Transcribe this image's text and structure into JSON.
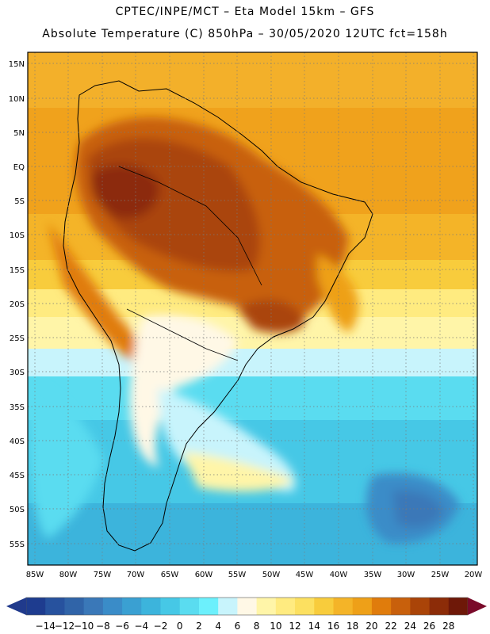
{
  "titles": {
    "line1": "CPTEC/INPE/MCT –  Eta Model 15km – GFS",
    "line2": "Absolute Temperature (C) 850hPa – 30/05/2020 12UTC fct=158h"
  },
  "map": {
    "lat_labels": [
      "15N",
      "10N",
      "5N",
      "EQ",
      "5S",
      "10S",
      "15S",
      "20S",
      "25S",
      "30S",
      "35S",
      "40S",
      "45S",
      "50S",
      "55S"
    ],
    "lon_labels": [
      "85W",
      "80W",
      "75W",
      "70W",
      "65W",
      "60W",
      "55W",
      "50W",
      "45W",
      "40W",
      "35W",
      "30W",
      "25W",
      "20W"
    ],
    "lat_range": [
      17.5,
      -57.5
    ],
    "lon_range": [
      -86.5,
      -20.0
    ]
  },
  "colorbar": {
    "labels": [
      "-14",
      "-12",
      "-10",
      "-8",
      "-6",
      "-4",
      "-2",
      "0",
      "2",
      "4",
      "6",
      "8",
      "10",
      "12",
      "14",
      "16",
      "18",
      "20",
      "22",
      "24",
      "26",
      "28"
    ],
    "colors": [
      "#1e3c8f",
      "#27529e",
      "#3064a8",
      "#3a78b8",
      "#3a8cc8",
      "#3aa0d2",
      "#3cb4dc",
      "#46c8e6",
      "#5adcf0",
      "#6cf0fc",
      "#c8f4fc",
      "#fff8e6",
      "#fff5a8",
      "#ffeb80",
      "#fce060",
      "#f8cc3c",
      "#f4b428",
      "#eea018",
      "#e07c0c",
      "#c8600c",
      "#aa4408",
      "#8c2c08",
      "#6e1808"
    ],
    "under_color": "#203a8c",
    "over_color": "#7a0a2a"
  }
}
